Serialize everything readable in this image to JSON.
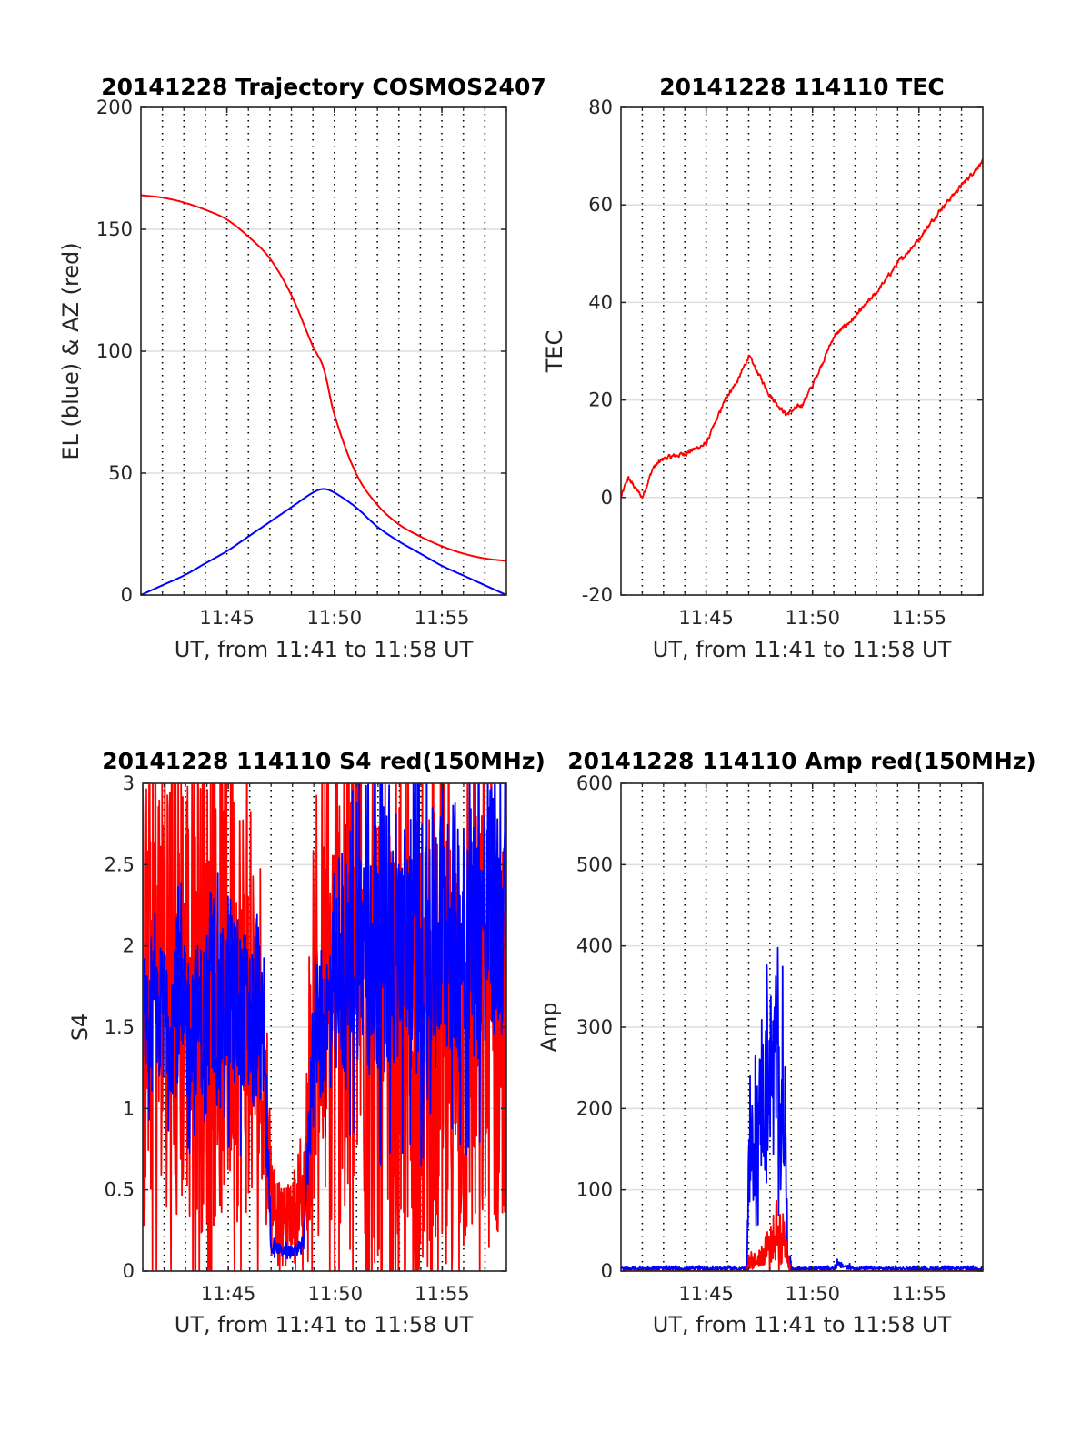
{
  "figure": {
    "background": "#ffffff"
  },
  "chart_data": [
    {
      "id": "trajectory",
      "type": "line",
      "title": "20141228 Trajectory COSMOS2407",
      "xlabel": "UT, from 11:41 to 11:58 UT",
      "ylabel": "EL (blue) & AZ (red)",
      "xlim": [
        "11:41",
        "11:58"
      ],
      "ylim": [
        0,
        200
      ],
      "xticks": [
        "11:45",
        "11:50",
        "11:55"
      ],
      "yticks": [
        0,
        50,
        100,
        150,
        200
      ],
      "grid": "y-solid, x-dotted every minute",
      "series": [
        {
          "color": "#ff0000",
          "style": "smooth",
          "x": [
            "11:41",
            "11:42",
            "11:43",
            "11:44",
            "11:45",
            "11:46",
            "11:47",
            "11:48",
            "11:49",
            "11:49:30",
            "11:50",
            "11:51",
            "11:52",
            "11:53",
            "11:54",
            "11:55",
            "11:56",
            "11:57",
            "11:58"
          ],
          "y": [
            164,
            163,
            161,
            158,
            154,
            147,
            138,
            123,
            102,
            93,
            74,
            50,
            37,
            29,
            24,
            20,
            17,
            15,
            14
          ]
        },
        {
          "color": "#0000ff",
          "style": "smooth",
          "x": [
            "11:41",
            "11:42",
            "11:43",
            "11:44",
            "11:45",
            "11:46",
            "11:47",
            "11:48",
            "11:49",
            "11:49:30",
            "11:50",
            "11:51",
            "11:52",
            "11:53",
            "11:54",
            "11:55",
            "11:56",
            "11:57",
            "11:58"
          ],
          "y": [
            0,
            4,
            8,
            13,
            18,
            24,
            30,
            36,
            42,
            43.5,
            42,
            36,
            28,
            22,
            17,
            12,
            8,
            4,
            0
          ]
        }
      ]
    },
    {
      "id": "tec",
      "type": "line",
      "title": "20141228 114110 TEC",
      "xlabel": "UT, from 11:41 to 11:58 UT",
      "ylabel": "TEC",
      "xlim": [
        "11:41",
        "11:58"
      ],
      "ylim": [
        -20,
        80
      ],
      "xticks": [
        "11:45",
        "11:50",
        "11:55"
      ],
      "yticks": [
        -20,
        0,
        20,
        40,
        60,
        80
      ],
      "grid": "y-solid, x-dotted every minute",
      "series": [
        {
          "color": "#ff0000",
          "style": "noisy",
          "noise": 0.7,
          "x": [
            "11:41",
            "11:41:20",
            "11:41:40",
            "11:42",
            "11:42:30",
            "11:43",
            "11:44",
            "11:45",
            "11:45:30",
            "11:46",
            "11:46:30",
            "11:47",
            "11:48",
            "11:48:45",
            "11:49:30",
            "11:50",
            "11:50:30",
            "11:51",
            "11:52",
            "11:53",
            "11:54",
            "11:55",
            "11:56",
            "11:57",
            "11:58"
          ],
          "y": [
            0,
            4,
            2,
            0,
            6,
            8,
            9,
            11,
            16,
            21,
            24,
            29,
            21,
            17,
            19,
            23,
            28,
            33,
            37,
            42,
            48,
            53,
            59,
            64,
            69
          ]
        }
      ]
    },
    {
      "id": "s4",
      "type": "line",
      "title": "20141228 114110 S4 red(150MHz)",
      "xlabel": "UT, from 11:41 to 11:58 UT",
      "ylabel": "S4",
      "xlim": [
        "11:41",
        "11:58"
      ],
      "ylim": [
        0,
        3
      ],
      "xticks": [
        "11:45",
        "11:50",
        "11:55"
      ],
      "yticks": [
        0,
        0.5,
        1,
        1.5,
        2,
        2.5,
        3
      ],
      "ytick_labels": [
        "0",
        "0.5",
        "1",
        "1.5",
        "2",
        "2.5",
        "3"
      ],
      "grid": "y-solid, x-dotted every minute",
      "series": [
        {
          "color": "#ff0000",
          "style": "spiky",
          "x": [
            "11:41",
            "11:42",
            "11:43",
            "11:44",
            "11:45",
            "11:46",
            "11:46:40",
            "11:47",
            "11:47:30",
            "11:48",
            "11:48:30",
            "11:49",
            "11:50",
            "11:51",
            "11:52",
            "11:53",
            "11:54",
            "11:55",
            "11:56",
            "11:57",
            "11:58"
          ],
          "y": [
            1.6,
            1.9,
            1.8,
            1.7,
            1.8,
            1.6,
            1.2,
            0.5,
            0.3,
            0.35,
            0.4,
            1.4,
            1.7,
            1.9,
            1.3,
            1.2,
            1.3,
            1.3,
            1.4,
            1.5,
            1.5
          ],
          "amp": [
            1.5,
            1.5,
            1.5,
            1.5,
            1.5,
            1.3,
            0.6,
            0.25,
            0.2,
            0.2,
            0.3,
            1.0,
            1.5,
            1.5,
            1.4,
            1.4,
            1.4,
            1.4,
            1.4,
            1.4,
            1.4
          ]
        },
        {
          "color": "#0000ff",
          "style": "spiky",
          "x": [
            "11:41",
            "11:42",
            "11:43",
            "11:44",
            "11:45",
            "11:46",
            "11:46:40",
            "11:47",
            "11:47:30",
            "11:48",
            "11:48:30",
            "11:49",
            "11:50",
            "11:51",
            "11:52",
            "11:53",
            "11:54",
            "11:55",
            "11:56",
            "11:57",
            "11:58"
          ],
          "y": [
            1.5,
            1.6,
            1.5,
            1.6,
            1.6,
            1.6,
            1.4,
            0.15,
            0.13,
            0.12,
            0.15,
            1.5,
            1.6,
            2.0,
            2.1,
            2.0,
            2.0,
            2.1,
            2.1,
            2.2,
            2.2
          ],
          "amp": [
            0.3,
            0.45,
            0.5,
            0.45,
            0.5,
            0.5,
            0.4,
            0.04,
            0.03,
            0.03,
            0.04,
            0.35,
            0.5,
            0.7,
            0.8,
            0.8,
            0.8,
            0.8,
            0.8,
            0.8,
            0.8
          ]
        }
      ]
    },
    {
      "id": "amp",
      "type": "line",
      "title": "20141228 114110 Amp red(150MHz)",
      "xlabel": "UT, from 11:41 to 11:58 UT",
      "ylabel": "Amp",
      "xlim": [
        "11:41",
        "11:58"
      ],
      "ylim": [
        0,
        600
      ],
      "xticks": [
        "11:45",
        "11:50",
        "11:55"
      ],
      "yticks": [
        0,
        100,
        200,
        300,
        400,
        500,
        600
      ],
      "grid": "y-solid, x-dotted every minute",
      "series": [
        {
          "color": "#0000ff",
          "style": "spiky",
          "x": [
            "11:41",
            "11:46:55",
            "11:47",
            "11:47:30",
            "11:48",
            "11:48:20",
            "11:48:40",
            "11:48:50",
            "11:49",
            "11:51",
            "11:51:10",
            "11:52",
            "11:58"
          ],
          "y": [
            3,
            3,
            120,
            190,
            250,
            240,
            200,
            30,
            3,
            3,
            8,
            3,
            3
          ],
          "amp": [
            2,
            2,
            60,
            80,
            100,
            110,
            90,
            20,
            2,
            2,
            4,
            2,
            2
          ]
        },
        {
          "color": "#ff0000",
          "style": "spiky",
          "x": [
            "11:41",
            "11:46:55",
            "11:47",
            "11:47:30",
            "11:48",
            "11:48:20",
            "11:48:40",
            "11:49",
            "11:58"
          ],
          "y": [
            0,
            0,
            10,
            15,
            30,
            50,
            40,
            0,
            0
          ],
          "amp": [
            0,
            0,
            10,
            10,
            20,
            40,
            30,
            0,
            0
          ]
        }
      ]
    }
  ]
}
